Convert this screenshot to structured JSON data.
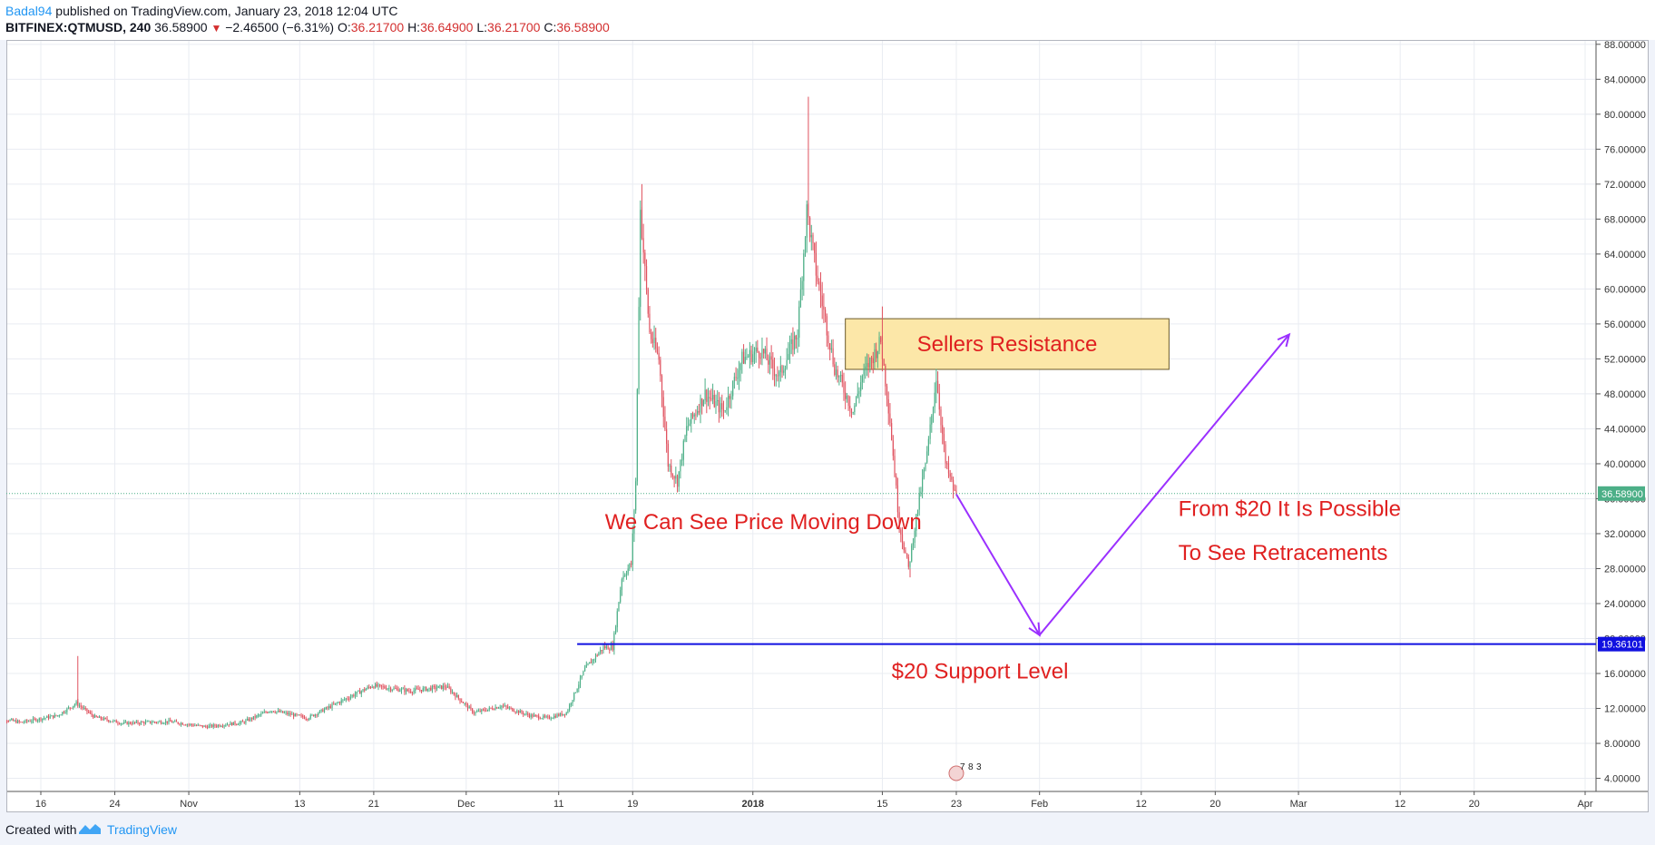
{
  "header": {
    "author": "Badal94",
    "published": " published on TradingView.com, January 23, 2018 12:04 UTC",
    "symbol": "BITFINEX:QTMUSD, 240",
    "last": "36.58900",
    "change": "−2.46500 (−6.31%)",
    "ohlc": [
      {
        "label": "O:",
        "value": "36.21700"
      },
      {
        "label": "H:",
        "value": "36.64900"
      },
      {
        "label": "L:",
        "value": "36.21700"
      },
      {
        "label": "C:",
        "value": "36.58900"
      }
    ]
  },
  "footer": {
    "created_with": "Created with",
    "brand": "TradingView"
  },
  "colors": {
    "up": "#4caf87",
    "down": "#e0525f",
    "support_line": "#1010e0",
    "arrow": "#9b30ff",
    "annotation_text": "#e02020",
    "resistance_fill": "#fce7a8",
    "price_label_bg": "#4caf87"
  },
  "chart_data": {
    "type": "candlestick",
    "title": "",
    "y_axis": {
      "position": "right",
      "range": [
        2.5,
        88.5
      ],
      "ticks": [
        "4.00000",
        "8.00000",
        "12.00000",
        "16.00000",
        "20.00000",
        "24.00000",
        "28.00000",
        "32.00000",
        "36.00000",
        "40.00000",
        "44.00000",
        "48.00000",
        "52.00000",
        "56.00000",
        "60.00000",
        "64.00000",
        "68.00000",
        "72.00000",
        "76.00000",
        "80.00000",
        "84.00000",
        "88.00000"
      ]
    },
    "x_axis": {
      "labels": [
        {
          "label": "16",
          "date": "2017-10-16",
          "bold": false
        },
        {
          "label": "24",
          "date": "2017-10-24",
          "bold": false
        },
        {
          "label": "Nov",
          "date": "2017-11-01",
          "bold": false
        },
        {
          "label": "13",
          "date": "2017-11-13",
          "bold": false
        },
        {
          "label": "21",
          "date": "2017-11-21",
          "bold": false
        },
        {
          "label": "Dec",
          "date": "2017-12-01",
          "bold": false
        },
        {
          "label": "11",
          "date": "2017-12-11",
          "bold": false
        },
        {
          "label": "19",
          "date": "2017-12-19",
          "bold": false
        },
        {
          "label": "2018",
          "date": "2018-01-01",
          "bold": true
        },
        {
          "label": "15",
          "date": "2018-01-15",
          "bold": false
        },
        {
          "label": "23",
          "date": "2018-01-23",
          "bold": false
        },
        {
          "label": "Feb",
          "date": "2018-02-01",
          "bold": false
        },
        {
          "label": "12",
          "date": "2018-02-12",
          "bold": false
        },
        {
          "label": "20",
          "date": "2018-02-20",
          "bold": false
        },
        {
          "label": "Mar",
          "date": "2018-03-01",
          "bold": false
        },
        {
          "label": "12",
          "date": "2018-03-12",
          "bold": false
        },
        {
          "label": "20",
          "date": "2018-03-20",
          "bold": false
        },
        {
          "label": "Apr",
          "date": "2018-04-01",
          "bold": false
        }
      ]
    },
    "grid": true,
    "price_path": [
      [
        "2017-10-11",
        11.0
      ],
      [
        "2017-10-14",
        10.4
      ],
      [
        "2017-10-18",
        11.2
      ],
      [
        "2017-10-20",
        12.6
      ],
      [
        "2017-10-22",
        11.0
      ],
      [
        "2017-10-25",
        10.3
      ],
      [
        "2017-10-30",
        10.5
      ],
      [
        "2017-11-03",
        9.9
      ],
      [
        "2017-11-07",
        10.4
      ],
      [
        "2017-11-10",
        11.8
      ],
      [
        "2017-11-14",
        10.9
      ],
      [
        "2017-11-17",
        12.5
      ],
      [
        "2017-11-21",
        14.6
      ],
      [
        "2017-11-25",
        14.0
      ],
      [
        "2017-11-29",
        14.5
      ],
      [
        "2017-12-02",
        11.5
      ],
      [
        "2017-12-05",
        12.3
      ],
      [
        "2017-12-08",
        11.2
      ],
      [
        "2017-12-10",
        10.9
      ],
      [
        "2017-12-12",
        11.5
      ],
      [
        "2017-12-14",
        16.5
      ],
      [
        "2017-12-16",
        19.0
      ],
      [
        "2017-12-17",
        19.0
      ],
      [
        "2017-12-18",
        27.0
      ],
      [
        "2017-12-19",
        28.5
      ],
      [
        "2017-12-19T12",
        38.0
      ],
      [
        "2017-12-20",
        69.0
      ],
      [
        "2017-12-21",
        55.0
      ],
      [
        "2017-12-22",
        52.0
      ],
      [
        "2017-12-23",
        40.0
      ],
      [
        "2017-12-24",
        38.0
      ],
      [
        "2017-12-25",
        44.0
      ],
      [
        "2017-12-27",
        48.0
      ],
      [
        "2017-12-29",
        46.0
      ],
      [
        "2017-12-31",
        52.0
      ],
      [
        "2018-01-02",
        53.0
      ],
      [
        "2018-01-04",
        50.0
      ],
      [
        "2018-01-06",
        55.0
      ],
      [
        "2018-01-07",
        69.0
      ],
      [
        "2018-01-08",
        62.0
      ],
      [
        "2018-01-10",
        51.0
      ],
      [
        "2018-01-12",
        46.0
      ],
      [
        "2018-01-13",
        50.0
      ],
      [
        "2018-01-15",
        54.0
      ],
      [
        "2018-01-16",
        45.0
      ],
      [
        "2018-01-17",
        33.0
      ],
      [
        "2018-01-18",
        28.0
      ],
      [
        "2018-01-19",
        35.0
      ],
      [
        "2018-01-20",
        41.0
      ],
      [
        "2018-01-21",
        50.0
      ],
      [
        "2018-01-22",
        40.0
      ],
      [
        "2018-01-23",
        36.589
      ]
    ],
    "spikes": [
      {
        "date": "2017-10-20",
        "high": 18.0
      },
      {
        "date": "2017-12-20",
        "high": 72.0
      },
      {
        "date": "2018-01-07",
        "high": 82.0
      },
      {
        "date": "2018-01-15",
        "high": 58.0
      },
      {
        "date": "2018-01-18",
        "low": 27.0
      }
    ],
    "current_price": {
      "value": 36.589,
      "label": "36.58900"
    },
    "support": {
      "value": 19.36101,
      "label": "19.36101",
      "from_date": "2017-12-13",
      "text": "$20 Support Level"
    },
    "resistance_zone": {
      "from_date": "2018-01-11",
      "to_date": "2018-02-15",
      "low": 50.8,
      "high": 56.6,
      "text": "Sellers Resistance"
    },
    "annotations": [
      {
        "text": "We Can See Price Moving Down",
        "date": "2017-12-16",
        "price": 32.5
      },
      {
        "text": "From $20 It Is Possible",
        "date": "2018-02-16",
        "price": 34.0
      },
      {
        "text": "To See Retracements",
        "date": "2018-02-16",
        "price": 29.0
      }
    ],
    "projection_path": [
      [
        "2018-01-23",
        36.5
      ],
      [
        "2018-02-01",
        20.4
      ],
      [
        "2018-02-28",
        54.8
      ]
    ],
    "events_marker": {
      "date": "2018-01-23",
      "digits": [
        "7",
        "8",
        "3"
      ]
    }
  }
}
